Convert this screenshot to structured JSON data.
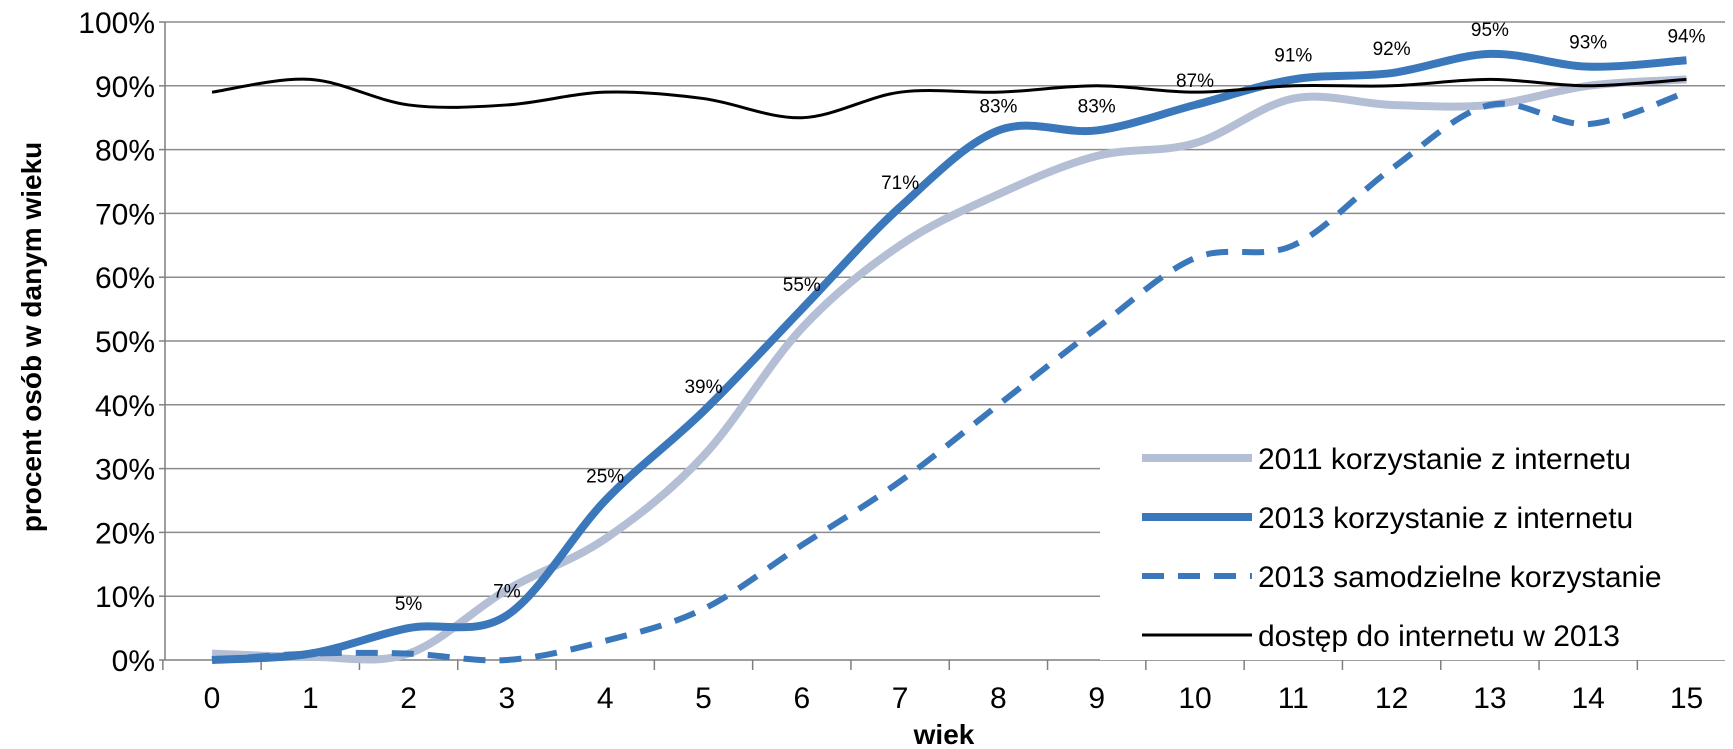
{
  "chart_data": {
    "type": "line",
    "xlabel": "wiek",
    "ylabel": "procent osób w danym wieku",
    "x": [
      0,
      1,
      2,
      3,
      4,
      5,
      6,
      7,
      8,
      9,
      10,
      11,
      12,
      13,
      14,
      15
    ],
    "ylim": [
      0,
      100
    ],
    "yticks": [
      0,
      10,
      20,
      30,
      40,
      50,
      60,
      70,
      80,
      90,
      100
    ],
    "ytick_labels": [
      "0%",
      "10%",
      "20%",
      "30%",
      "40%",
      "50%",
      "60%",
      "70%",
      "80%",
      "90%",
      "100%"
    ],
    "xtick_labels": [
      "0",
      "1",
      "2",
      "3",
      "4",
      "5",
      "6",
      "7",
      "8",
      "9",
      "10",
      "11",
      "12",
      "13",
      "14",
      "15"
    ],
    "grid": true,
    "legend_position": "bottom-right",
    "series": [
      {
        "name": "2011 korzystanie z internetu",
        "color": "#b4bfd6",
        "style": "solid",
        "values": [
          1,
          0.5,
          1,
          11,
          19,
          32,
          52,
          65,
          73,
          79,
          81,
          88,
          87,
          87,
          90,
          91
        ]
      },
      {
        "name": "2013 korzystanie z internetu",
        "color": "#3a78bb",
        "style": "solid",
        "values": [
          0,
          1,
          5,
          7,
          25,
          39,
          55,
          71,
          83,
          83,
          87,
          91,
          92,
          95,
          93,
          94
        ]
      },
      {
        "name": "2013 samodzielne korzystanie",
        "color": "#3a78bb",
        "style": "dashed",
        "values": [
          0,
          1,
          1,
          0,
          3,
          8,
          18,
          28,
          40,
          52,
          63,
          65,
          77,
          87,
          84,
          89
        ]
      },
      {
        "name": "dostęp do internetu w 2013",
        "color": "#000000",
        "style": "solid",
        "values": [
          89,
          91,
          87,
          87,
          89,
          88,
          85,
          89,
          89,
          90,
          89,
          90,
          90,
          91,
          90,
          91
        ]
      }
    ],
    "data_labels": {
      "series": 1,
      "labels": [
        "",
        "",
        "5%",
        "7%",
        "25%",
        "39%",
        "55%",
        "71%",
        "83%",
        "83%",
        "87%",
        "91%",
        "92%",
        "95%",
        "93%",
        "94%"
      ]
    }
  }
}
